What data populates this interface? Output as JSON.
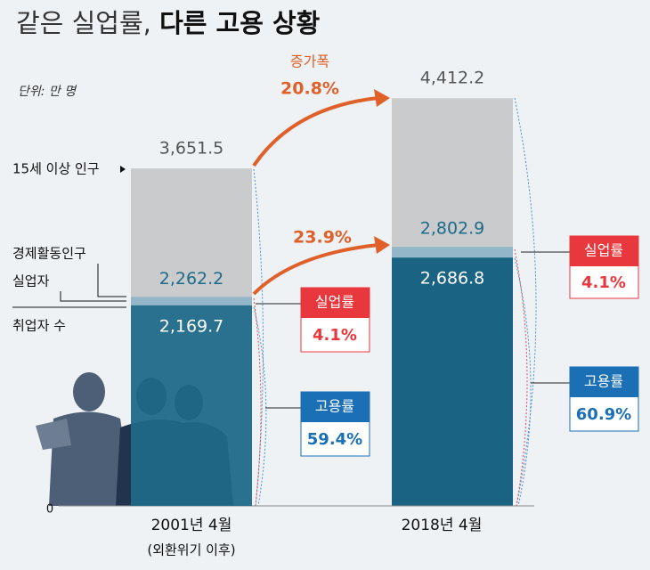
{
  "chart_data": {
    "type": "bar",
    "title": [
      "같은 실업률,",
      "다른 고용 상황"
    ],
    "unit": "단위: 만 명",
    "categories": [
      "2001년 4월",
      "2018년 4월"
    ],
    "category_notes": [
      "(외환위기 이후)"
    ],
    "series": [
      {
        "name": "15세 이상 인구",
        "color": "#c9cbcd",
        "values": [
          3651.5,
          4412.2
        ],
        "value_labels": [
          "3,651.5",
          "4,412.2"
        ]
      },
      {
        "name": "경제활동인구",
        "color": "#93b7c8",
        "values": [
          2262.2,
          2802.9
        ],
        "value_labels": [
          "2,262.2",
          "2,802.9"
        ]
      },
      {
        "name": "취업자 수",
        "color": "#1f6a89",
        "values": [
          2169.7,
          2686.8
        ],
        "value_labels": [
          "2,169.7",
          "2,686.8"
        ]
      }
    ],
    "unemployed_label": "실업자",
    "growth": {
      "label": "증가폭",
      "population": "20.8%",
      "active": "23.9%"
    },
    "rates": [
      {
        "unemployment_label": "실업률",
        "unemployment": "4.1%",
        "employment_label": "고용률",
        "employment": "59.4%"
      },
      {
        "unemployment_label": "실업률",
        "unemployment": "4.1%",
        "employment_label": "고용률",
        "employment": "60.9%"
      }
    ],
    "ylim": [
      0,
      4800
    ],
    "yticks": [
      0
    ]
  }
}
